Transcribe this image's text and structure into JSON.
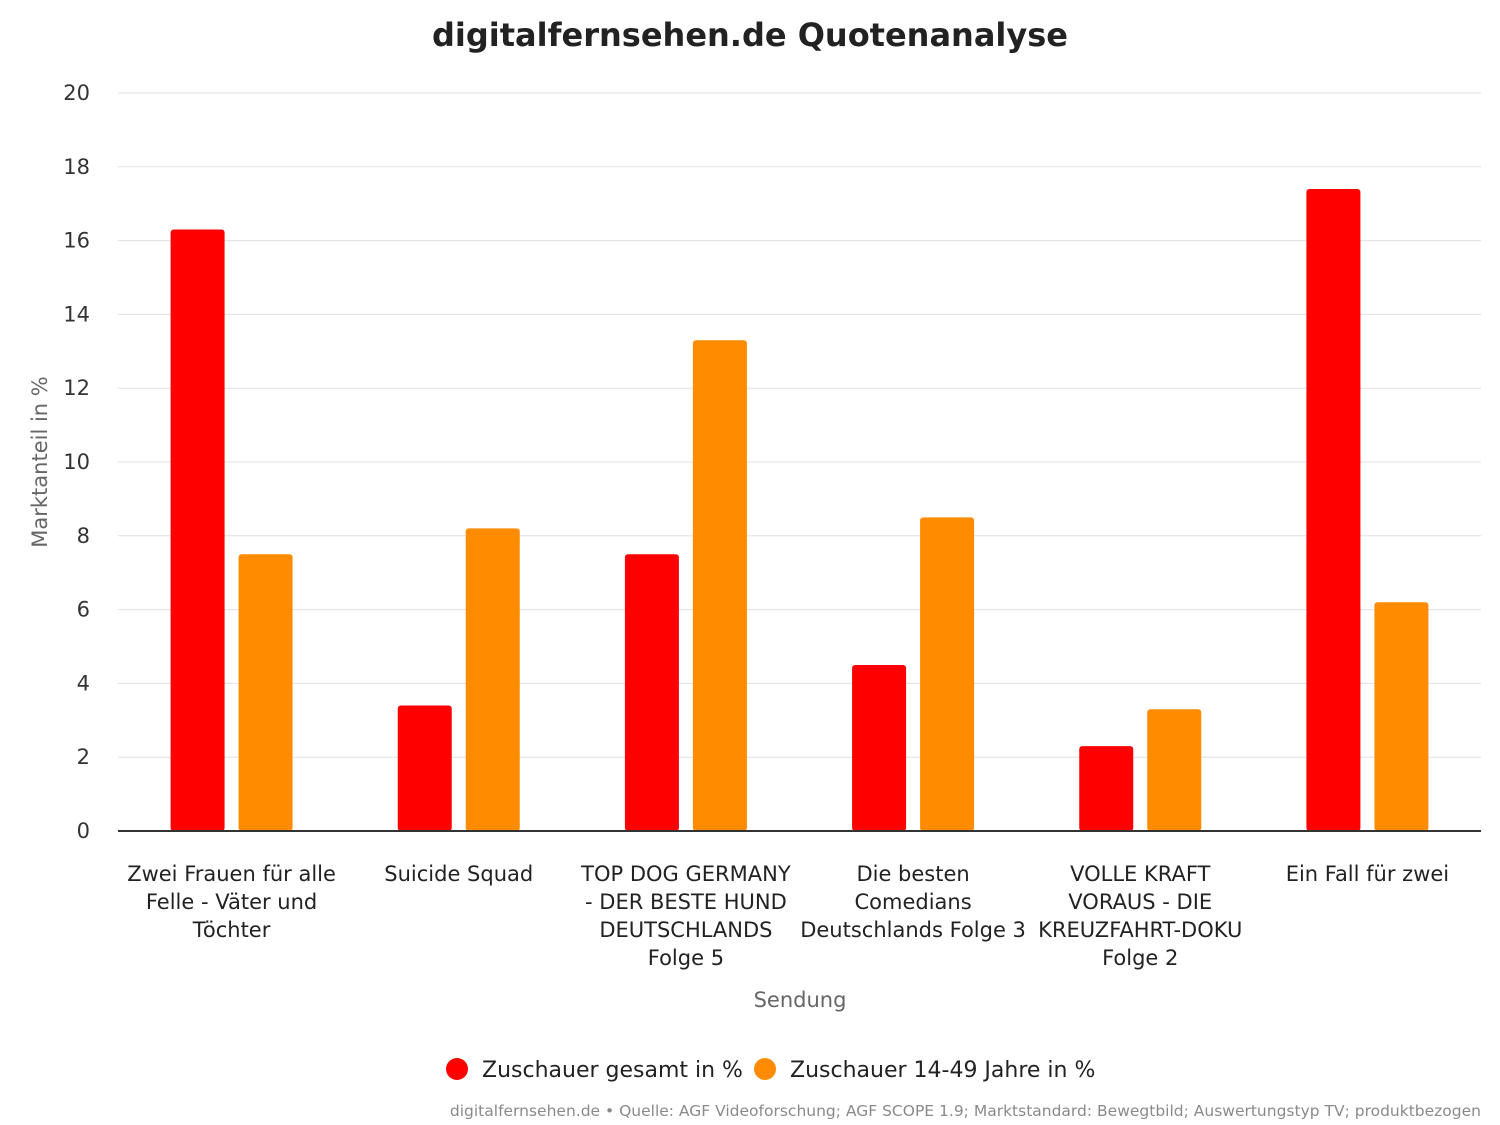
{
  "chart_data": {
    "type": "bar",
    "title": "digitalfernsehen.de Quotenanalyse",
    "xlabel": "Sendung",
    "ylabel": "Marktanteil in %",
    "ylim": [
      0,
      20
    ],
    "yticks": [
      0,
      2,
      4,
      6,
      8,
      10,
      12,
      14,
      16,
      18,
      20
    ],
    "grid": true,
    "legend_position": "bottom",
    "categories": [
      [
        "Zwei Frauen für alle",
        "Felle - Väter und",
        "Töchter"
      ],
      [
        "Suicide Squad"
      ],
      [
        "TOP DOG GERMANY",
        "- DER BESTE HUND",
        "DEUTSCHLANDS",
        "Folge 5"
      ],
      [
        "Die besten",
        "Comedians",
        "Deutschlands Folge 3"
      ],
      [
        "VOLLE KRAFT",
        "VORAUS - DIE",
        "KREUZFAHRT-DOKU",
        "Folge 2"
      ],
      [
        "Ein Fall für zwei"
      ]
    ],
    "series": [
      {
        "name": "Zuschauer gesamt in %",
        "color": "#ff0000",
        "values": [
          16.3,
          3.4,
          7.5,
          4.5,
          2.3,
          17.4
        ]
      },
      {
        "name": "Zuschauer 14-49 Jahre in %",
        "color": "#ff8c00",
        "values": [
          7.5,
          8.2,
          13.3,
          8.5,
          3.3,
          6.2
        ]
      }
    ],
    "credit": "digitalfernsehen.de • Quelle: AGF Videoforschung; AGF SCOPE 1.9; Marktstandard: Bewegtbild; Auswertungstyp TV; produktbezogen"
  }
}
